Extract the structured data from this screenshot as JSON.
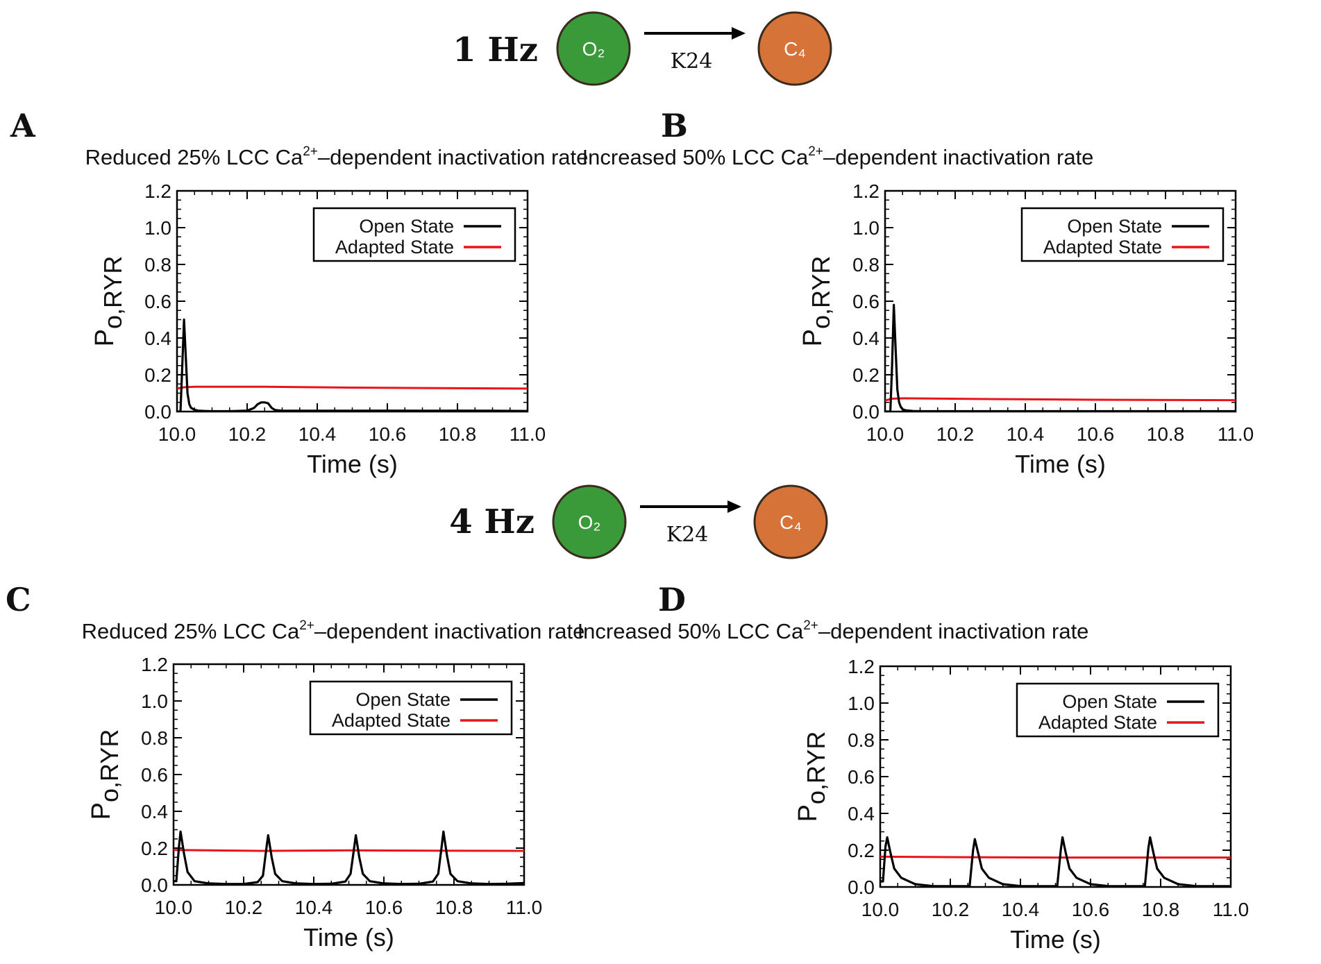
{
  "colors": {
    "open_state": "#000000",
    "adapted_state": "#e8141c",
    "open_node": "#3a9a3a",
    "closed_node": "#d67338",
    "node_border": "#3b2a1e"
  },
  "schemes": [
    {
      "freq": "1 Hz",
      "from_label": "O₂",
      "to_label": "C₄",
      "rate_label": "K24"
    },
    {
      "freq": "4 Hz",
      "from_label": "O₂",
      "to_label": "C₄",
      "rate_label": "K24"
    }
  ],
  "chart_data": [
    {
      "panel": "A",
      "type": "line",
      "title_prefix": "Reduced 25% LCC Ca",
      "title_sup": "2+",
      "title_suffix": "–dependent inactivation rate",
      "xlabel": "Time (s)",
      "ylabel_main": "P",
      "ylabel_sub": "o,RYR",
      "xlim": [
        10.0,
        11.0
      ],
      "ylim": [
        0.0,
        1.2
      ],
      "xticks": [
        "10.0",
        "10.2",
        "10.4",
        "10.6",
        "10.8",
        "11.0"
      ],
      "yticks": [
        "0.0",
        "0.2",
        "0.4",
        "0.6",
        "0.8",
        "1.0",
        "1.2"
      ],
      "legend": [
        "Open State",
        "Adapted State"
      ],
      "legend_position": "top-right",
      "series": [
        {
          "name": "Open State",
          "x": [
            10.0,
            10.01,
            10.015,
            10.02,
            10.025,
            10.03,
            10.035,
            10.04,
            10.05,
            10.06,
            10.08,
            10.1,
            10.15,
            10.2,
            10.22,
            10.23,
            10.24,
            10.25,
            10.26,
            10.27,
            10.28,
            10.3,
            10.4,
            10.5,
            10.6,
            10.7,
            10.8,
            10.9,
            11.0
          ],
          "y": [
            0.0,
            0.0,
            0.25,
            0.5,
            0.3,
            0.1,
            0.04,
            0.02,
            0.01,
            0.005,
            0.003,
            0.002,
            0.002,
            0.005,
            0.02,
            0.04,
            0.05,
            0.05,
            0.045,
            0.02,
            0.008,
            0.004,
            0.004,
            0.004,
            0.005,
            0.004,
            0.005,
            0.004,
            0.003
          ]
        },
        {
          "name": "Adapted State",
          "x": [
            10.0,
            10.02,
            10.05,
            10.25,
            10.5,
            10.75,
            11.0
          ],
          "y": [
            0.125,
            0.132,
            0.135,
            0.135,
            0.13,
            0.127,
            0.125
          ]
        }
      ]
    },
    {
      "panel": "B",
      "type": "line",
      "title_prefix": "Increased 50% LCC Ca",
      "title_sup": "2+",
      "title_suffix": "–dependent inactivation rate",
      "xlabel": "Time (s)",
      "ylabel_main": "P",
      "ylabel_sub": "o,RYR",
      "xlim": [
        10.0,
        11.0
      ],
      "ylim": [
        0.0,
        1.2
      ],
      "xticks": [
        "10.0",
        "10.2",
        "10.4",
        "10.6",
        "10.8",
        "11.0"
      ],
      "yticks": [
        "0.0",
        "0.2",
        "0.4",
        "0.6",
        "0.8",
        "1.0",
        "1.2"
      ],
      "legend": [
        "Open State",
        "Adapted State"
      ],
      "legend_position": "top-right",
      "series": [
        {
          "name": "Open State",
          "x": [
            10.0,
            10.015,
            10.02,
            10.025,
            10.03,
            10.035,
            10.04,
            10.045,
            10.05,
            10.06,
            10.08,
            10.1,
            10.2,
            10.3,
            10.4,
            10.5,
            10.6,
            10.7,
            10.8,
            10.9,
            11.0
          ],
          "y": [
            0.0,
            0.0,
            0.25,
            0.58,
            0.35,
            0.12,
            0.05,
            0.025,
            0.012,
            0.006,
            0.003,
            0.002,
            0.002,
            0.002,
            0.002,
            0.002,
            0.002,
            0.002,
            0.002,
            0.002,
            0.002
          ]
        },
        {
          "name": "Adapted State",
          "x": [
            10.0,
            10.02,
            10.05,
            10.3,
            10.6,
            11.0
          ],
          "y": [
            0.06,
            0.07,
            0.072,
            0.068,
            0.064,
            0.062
          ]
        }
      ]
    },
    {
      "panel": "C",
      "type": "line",
      "title_prefix": "Reduced 25% LCC Ca",
      "title_sup": "2+",
      "title_suffix": "–dependent inactivation rate",
      "xlabel": "Time (s)",
      "ylabel_main": "P",
      "ylabel_sub": "o,RYR",
      "xlim": [
        10.0,
        11.0
      ],
      "ylim": [
        0.0,
        1.2
      ],
      "xticks": [
        "10.0",
        "10.2",
        "10.4",
        "10.6",
        "10.8",
        "11.0"
      ],
      "yticks": [
        "0.0",
        "0.2",
        "0.4",
        "0.6",
        "0.8",
        "1.0",
        "1.2"
      ],
      "legend": [
        "Open State",
        "Adapted State"
      ],
      "legend_position": "top-right",
      "series": [
        {
          "name": "Open State",
          "x": [
            10.0,
            10.008,
            10.015,
            10.02,
            10.03,
            10.04,
            10.06,
            10.1,
            10.15,
            10.2,
            10.24,
            10.255,
            10.265,
            10.27,
            10.28,
            10.29,
            10.31,
            10.35,
            10.4,
            10.45,
            10.49,
            10.505,
            10.515,
            10.52,
            10.53,
            10.54,
            10.56,
            10.6,
            10.65,
            10.7,
            10.74,
            10.755,
            10.765,
            10.77,
            10.78,
            10.79,
            10.81,
            10.85,
            10.9,
            10.95,
            11.0
          ],
          "y": [
            0.02,
            0.02,
            0.2,
            0.29,
            0.17,
            0.07,
            0.02,
            0.008,
            0.005,
            0.005,
            0.015,
            0.05,
            0.2,
            0.27,
            0.15,
            0.06,
            0.02,
            0.008,
            0.005,
            0.006,
            0.018,
            0.06,
            0.2,
            0.27,
            0.15,
            0.06,
            0.02,
            0.008,
            0.005,
            0.006,
            0.018,
            0.06,
            0.21,
            0.29,
            0.16,
            0.06,
            0.02,
            0.008,
            0.005,
            0.006,
            0.01
          ]
        },
        {
          "name": "Adapted State",
          "x": [
            10.0,
            10.25,
            10.5,
            10.75,
            11.0
          ],
          "y": [
            0.19,
            0.185,
            0.188,
            0.186,
            0.185
          ]
        }
      ]
    },
    {
      "panel": "D",
      "type": "line",
      "title_prefix": "Increased 50% LCC Ca",
      "title_sup": "2+",
      "title_suffix": "–dependent inactivation rate",
      "xlabel": "Time (s)",
      "ylabel_main": "P",
      "ylabel_sub": "o,RYR",
      "xlim": [
        10.0,
        11.0
      ],
      "ylim": [
        0.0,
        1.2
      ],
      "xticks": [
        "10.0",
        "10.2",
        "10.4",
        "10.6",
        "10.8",
        "11.0"
      ],
      "yticks": [
        "0.0",
        "0.2",
        "0.4",
        "0.6",
        "0.8",
        "1.0",
        "1.2"
      ],
      "legend": [
        "Open State",
        "Adapted State"
      ],
      "legend_position": "top-right",
      "series": [
        {
          "name": "Open State",
          "x": [
            10.0,
            10.008,
            10.015,
            10.02,
            10.03,
            10.04,
            10.06,
            10.1,
            10.15,
            10.2,
            10.255,
            10.265,
            10.27,
            10.28,
            10.29,
            10.31,
            10.35,
            10.4,
            10.45,
            10.505,
            10.515,
            10.52,
            10.53,
            10.54,
            10.56,
            10.6,
            10.65,
            10.7,
            10.755,
            10.765,
            10.77,
            10.78,
            10.79,
            10.81,
            10.85,
            10.9,
            10.95,
            11.0
          ],
          "y": [
            0.03,
            0.03,
            0.22,
            0.27,
            0.18,
            0.1,
            0.05,
            0.015,
            0.005,
            0.004,
            0.004,
            0.2,
            0.26,
            0.18,
            0.1,
            0.05,
            0.015,
            0.005,
            0.004,
            0.004,
            0.2,
            0.27,
            0.18,
            0.1,
            0.05,
            0.015,
            0.005,
            0.004,
            0.004,
            0.21,
            0.27,
            0.18,
            0.1,
            0.05,
            0.015,
            0.005,
            0.004,
            0.004
          ]
        },
        {
          "name": "Adapted State",
          "x": [
            10.0,
            10.25,
            10.5,
            10.75,
            11.0
          ],
          "y": [
            0.165,
            0.162,
            0.16,
            0.16,
            0.16
          ]
        }
      ]
    }
  ]
}
